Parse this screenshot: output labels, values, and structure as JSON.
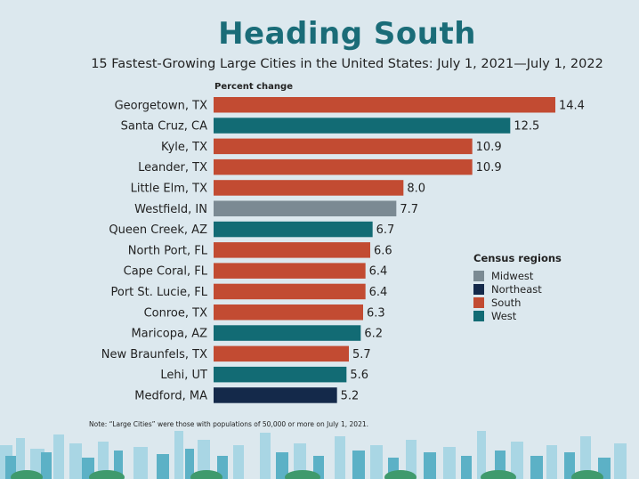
{
  "header": {
    "title": "Heading South",
    "subtitle": "15 Fastest-Growing Large Cities in the United States: July 1, 2021—July 1, 2022",
    "axis_label": "Percent change"
  },
  "legend": {
    "title": "Census regions",
    "items": [
      {
        "label": "Midwest",
        "color": "#7b8a93"
      },
      {
        "label": "Northeast",
        "color": "#14294a"
      },
      {
        "label": "South",
        "color": "#c24b32"
      },
      {
        "label": "West",
        "color": "#126b74"
      }
    ]
  },
  "note": "Note: “Large Cities” were those with populations of 50,000 or more on July 1, 2021.",
  "chart_data": {
    "type": "bar",
    "orientation": "horizontal",
    "title": "Heading South",
    "subtitle": "15 Fastest-Growing Large Cities in the United States: July 1, 2021—July 1, 2022",
    "xlabel": "Percent change",
    "ylabel": "",
    "grid": false,
    "legend_position": "right",
    "categories": [
      "Georgetown, TX",
      "Santa Cruz, CA",
      "Kyle, TX",
      "Leander, TX",
      "Little Elm, TX",
      "Westfield, IN",
      "Queen Creek, AZ",
      "North Port, FL",
      "Cape Coral, FL",
      "Port St. Lucie, FL",
      "Conroe, TX",
      "Maricopa, AZ",
      "New Braunfels, TX",
      "Lehi, UT",
      "Medford, MA"
    ],
    "values": [
      14.4,
      12.5,
      10.9,
      10.9,
      8.0,
      7.7,
      6.7,
      6.6,
      6.4,
      6.4,
      6.3,
      6.2,
      5.7,
      5.6,
      5.2
    ],
    "value_labels": [
      "14.4",
      "12.5",
      "10.9",
      "10.9",
      "8.0",
      "7.7",
      "6.7",
      "6.6",
      "6.4",
      "6.4",
      "6.3",
      "6.2",
      "5.7",
      "5.6",
      "5.2"
    ],
    "regions": [
      "South",
      "West",
      "South",
      "South",
      "South",
      "Midwest",
      "West",
      "South",
      "South",
      "South",
      "South",
      "West",
      "South",
      "West",
      "Northeast"
    ],
    "xlim": [
      0,
      14.4
    ]
  }
}
